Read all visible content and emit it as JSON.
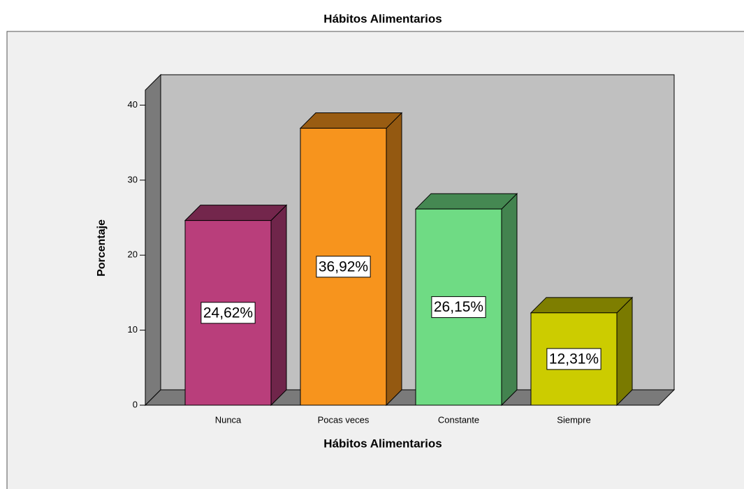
{
  "chart_data": {
    "type": "bar3d",
    "title": "Hábitos Alimentarios",
    "x_label": "Hábitos Alimentarios",
    "y_label": "Porcentaje",
    "categories": [
      "Nunca",
      "Pocas veces",
      "Constante",
      "Siempre"
    ],
    "values": [
      24.62,
      36.92,
      26.15,
      12.31
    ],
    "value_labels": [
      "24,62%",
      "36,92%",
      "26,15%",
      "12,31%"
    ],
    "colors": [
      "#b93e7b",
      "#f7941d",
      "#6fdb84",
      "#cccc00"
    ],
    "ylim": [
      0,
      42
    ],
    "yticks": [
      0,
      10,
      20,
      30,
      40
    ]
  }
}
